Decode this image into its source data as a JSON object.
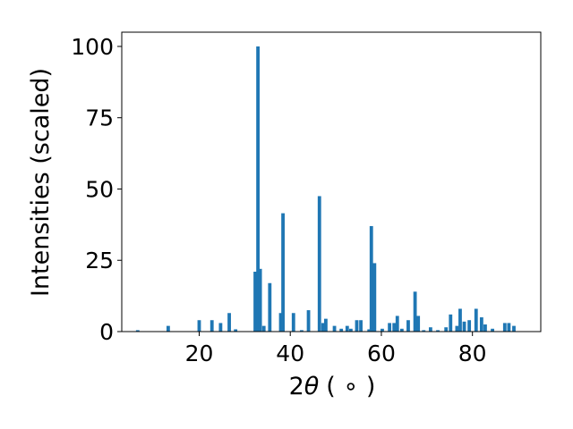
{
  "chart_data": {
    "type": "bar",
    "xlabel_prefix": "2",
    "xlabel_symbol": "θ",
    "xlabel_unit": "( ∘ )",
    "ylabel": "Intensities (scaled)",
    "xlim": [
      3,
      95
    ],
    "ylim": [
      0,
      105
    ],
    "xticks": [
      20,
      40,
      60,
      80
    ],
    "yticks": [
      0,
      25,
      50,
      75,
      100
    ],
    "bar_width": 0.75,
    "bar_color": "#1f77b4",
    "grid": false,
    "legend": "none",
    "x": [
      6.5,
      13.2,
      20.0,
      22.8,
      24.7,
      26.6,
      28.0,
      32.3,
      32.9,
      33.4,
      34.2,
      35.5,
      37.9,
      38.4,
      40.7,
      42.5,
      44.0,
      46.4,
      47.2,
      47.8,
      49.7,
      51.2,
      52.5,
      53.3,
      54.6,
      55.5,
      57.3,
      57.8,
      58.5,
      60.2,
      61.8,
      62.8,
      63.5,
      64.5,
      65.9,
      67.4,
      68.1,
      69.3,
      70.8,
      72.4,
      74.2,
      75.2,
      76.6,
      77.3,
      78.2,
      79.3,
      80.8,
      82.0,
      82.8,
      84.4,
      87.1,
      88.0,
      89.1
    ],
    "values": [
      0.5,
      2.0,
      4.0,
      4.0,
      3.0,
      6.5,
      0.8,
      21.0,
      100.0,
      22.0,
      2.0,
      17.0,
      6.5,
      41.5,
      6.5,
      0.5,
      7.5,
      47.5,
      3.0,
      4.5,
      2.0,
      1.0,
      2.0,
      1.0,
      4.0,
      4.0,
      0.8,
      37.0,
      24.0,
      1.0,
      3.0,
      3.0,
      5.5,
      1.0,
      4.0,
      14.0,
      5.5,
      0.5,
      1.5,
      0.5,
      1.5,
      6.0,
      2.0,
      8.0,
      3.5,
      4.0,
      8.0,
      5.0,
      2.5,
      1.0,
      3.0,
      3.0,
      2.0
    ]
  }
}
